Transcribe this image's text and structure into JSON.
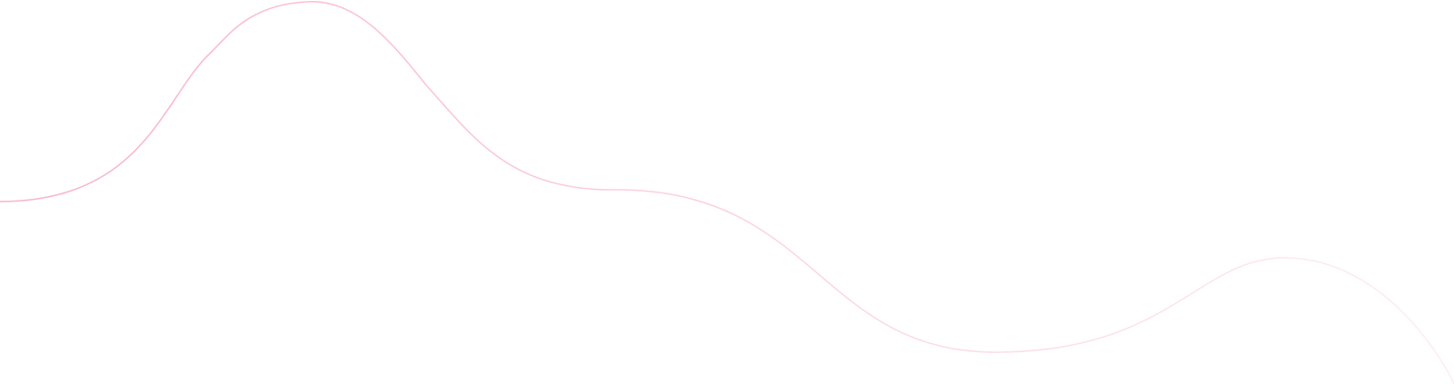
{
  "decoration": {
    "type": "wave-line",
    "colors": {
      "background": "#ffffff",
      "stroke_start": "#f9b3c9",
      "stroke_mid": "#fcd7e2",
      "stroke_end": "#fdeef2"
    }
  }
}
